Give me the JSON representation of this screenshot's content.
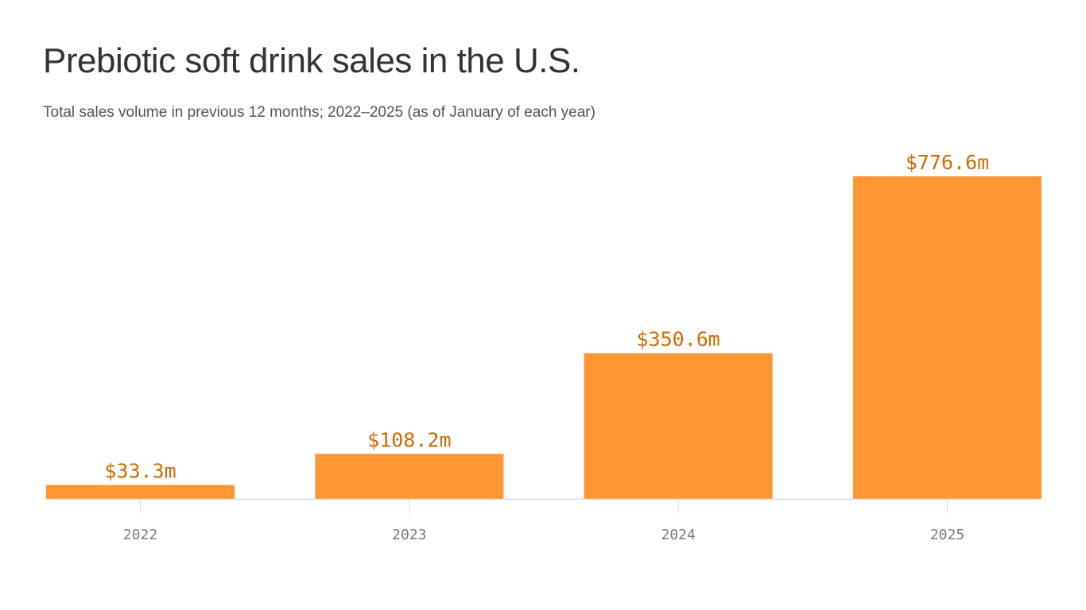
{
  "header": {
    "title": "Prebiotic soft drink sales in the U.S.",
    "subtitle": "Total sales volume in previous 12 months; 2022–2025 (as of January of each year)"
  },
  "colors": {
    "bar": "#ff9633",
    "value_label": "#d16a00",
    "axis": "#d9d9d9",
    "tick_label": "#7a7a7a"
  },
  "chart_data": {
    "type": "bar",
    "categories": [
      "2022",
      "2023",
      "2024",
      "2025"
    ],
    "values": [
      33.3,
      108.2,
      350.6,
      776.6
    ],
    "value_labels": [
      "$33.3m",
      "$108.2m",
      "$350.6m",
      "$776.6m"
    ],
    "title": "Prebiotic soft drink sales in the U.S.",
    "subtitle": "Total sales volume in previous 12 months; 2022–2025 (as of January of each year)",
    "xlabel": "",
    "ylabel": "",
    "ylim": [
      0,
      776.6
    ],
    "grid": false,
    "legend": "none"
  }
}
